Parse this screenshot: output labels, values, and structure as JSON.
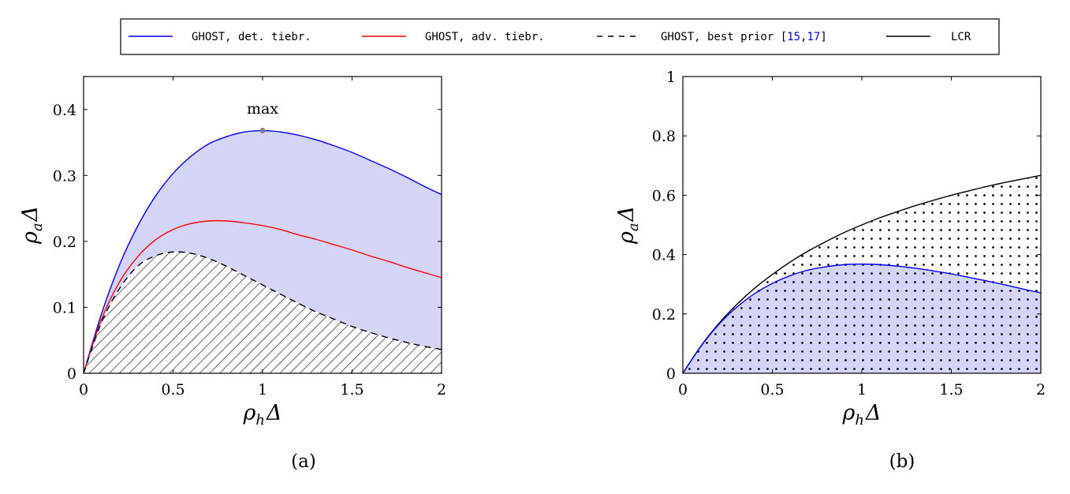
{
  "legend": {
    "entries": [
      {
        "label": "GHOST, det. tiebr.",
        "color": "#0000ff",
        "style": "solid"
      },
      {
        "label": "GHOST, adv. tiebr.",
        "color": "#ff0000",
        "style": "solid"
      },
      {
        "label": "GHOST, best prior [",
        "cite1": "15",
        "cite_sep": ",",
        "cite2": "17",
        "close": "]",
        "color": "#000000",
        "style": "dashed"
      },
      {
        "label": "LCR",
        "color": "#000000",
        "style": "solid"
      }
    ],
    "cite_color": "#0000ff"
  },
  "colors": {
    "fill_blue": "#d4d4f7",
    "hatch": "#20203a",
    "marker": "#808080"
  },
  "chart_data": [
    {
      "type": "line",
      "caption": "(a)",
      "xlabel_main": "ρ",
      "xlabel_sub": "h",
      "xlabel_tail": "Δ",
      "ylabel_main": "ρ",
      "ylabel_sub": "a",
      "ylabel_tail": "Δ",
      "xlim": [
        0,
        2
      ],
      "ylim": [
        0,
        0.45
      ],
      "xticks": [
        "0",
        "0.5",
        "1",
        "1.5",
        "2"
      ],
      "yticks": [
        "0",
        "0.1",
        "0.2",
        "0.3",
        "0.4"
      ],
      "ytick_values": [
        0,
        0.1,
        0.2,
        0.3,
        0.4
      ],
      "x": [
        0,
        0.1,
        0.2,
        0.3,
        0.4,
        0.5,
        0.6,
        0.7,
        0.8,
        0.9,
        1.0,
        1.1,
        1.2,
        1.3,
        1.4,
        1.5,
        1.6,
        1.7,
        1.8,
        1.9,
        2.0
      ],
      "series": [
        {
          "name": "GHOST, det. tiebr.",
          "color": "#0000ff",
          "values": [
            0,
            0.09,
            0.164,
            0.222,
            0.268,
            0.303,
            0.329,
            0.348,
            0.359,
            0.366,
            0.368,
            0.366,
            0.361,
            0.354,
            0.345,
            0.335,
            0.323,
            0.311,
            0.298,
            0.284,
            0.271
          ]
        },
        {
          "name": "GHOST, adv. tiebr.",
          "color": "#ff0000",
          "values": [
            0,
            0.082,
            0.138,
            0.176,
            0.202,
            0.218,
            0.227,
            0.231,
            0.231,
            0.228,
            0.224,
            0.218,
            0.21,
            0.203,
            0.195,
            0.187,
            0.178,
            0.17,
            0.161,
            0.153,
            0.145
          ]
        },
        {
          "name": "GHOST, best prior [15,17]",
          "color": "#000000",
          "dashed": true,
          "values": [
            0,
            0.077,
            0.128,
            0.162,
            0.178,
            0.184,
            0.182,
            0.174,
            0.162,
            0.148,
            0.134,
            0.12,
            0.106,
            0.093,
            0.082,
            0.071,
            0.062,
            0.054,
            0.047,
            0.041,
            0.036
          ]
        }
      ],
      "annotation": {
        "text": "max",
        "x": 1.0,
        "y": 0.368
      }
    },
    {
      "type": "line",
      "caption": "(b)",
      "xlabel_main": "ρ",
      "xlabel_sub": "h",
      "xlabel_tail": "Δ",
      "ylabel_main": "ρ",
      "ylabel_sub": "a",
      "ylabel_tail": "Δ",
      "xlim": [
        0,
        2
      ],
      "ylim": [
        0,
        1
      ],
      "xticks": [
        "0",
        "0.5",
        "1",
        "1.5",
        "2"
      ],
      "yticks": [
        "0",
        "0.2",
        "0.4",
        "0.6",
        "0.8",
        "1"
      ],
      "ytick_values": [
        0,
        0.2,
        0.4,
        0.6,
        0.8,
        1
      ],
      "x": [
        0,
        0.1,
        0.2,
        0.3,
        0.4,
        0.5,
        0.6,
        0.7,
        0.8,
        0.9,
        1.0,
        1.1,
        1.2,
        1.3,
        1.4,
        1.5,
        1.6,
        1.7,
        1.8,
        1.9,
        2.0
      ],
      "series": [
        {
          "name": "LCR",
          "color": "#000000",
          "values": [
            0,
            0.091,
            0.167,
            0.231,
            0.286,
            0.333,
            0.375,
            0.412,
            0.444,
            0.474,
            0.5,
            0.524,
            0.545,
            0.565,
            0.583,
            0.6,
            0.615,
            0.63,
            0.643,
            0.655,
            0.667
          ]
        },
        {
          "name": "GHOST, det. tiebr.",
          "color": "#0000ff",
          "values": [
            0,
            0.09,
            0.164,
            0.222,
            0.268,
            0.303,
            0.329,
            0.348,
            0.359,
            0.366,
            0.368,
            0.366,
            0.361,
            0.354,
            0.345,
            0.335,
            0.323,
            0.311,
            0.298,
            0.284,
            0.271
          ]
        }
      ]
    }
  ]
}
